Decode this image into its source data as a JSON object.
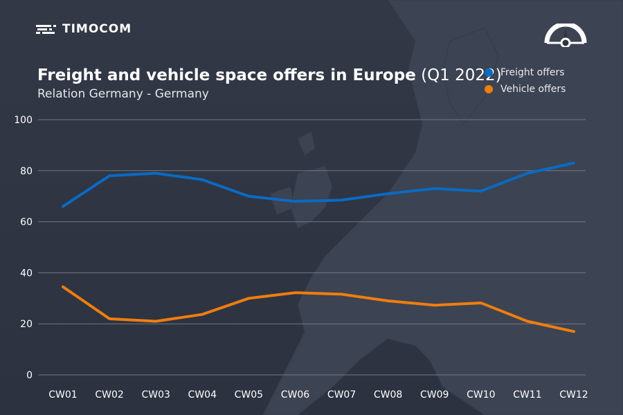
{
  "brand": {
    "name": "TIMOCOM"
  },
  "colors": {
    "background": "#2e3441",
    "freight": "#0a6ac3",
    "vehicle": "#f07d0f",
    "grid": "#727986",
    "text": "#ffffff"
  },
  "chart_data": {
    "type": "line",
    "title_bold": "Freight and vehicle space offers in Europe",
    "title_suffix": "(Q1 2022)",
    "subtitle": "Relation Germany - Germany",
    "categories": [
      "CW01",
      "CW02",
      "CW03",
      "CW04",
      "CW05",
      "CW06",
      "CW07",
      "CW08",
      "CW09",
      "CW10",
      "CW11",
      "CW12"
    ],
    "series": [
      {
        "name": "Freight offers",
        "color": "#0a6ac3",
        "values": [
          66,
          78,
          79,
          76.5,
          70,
          68,
          68.5,
          71,
          73,
          72,
          79,
          83
        ]
      },
      {
        "name": "Vehicle offers",
        "color": "#f07d0f",
        "values": [
          34.5,
          22,
          21,
          23.7,
          30,
          32.2,
          31.6,
          29,
          27.3,
          28.2,
          21,
          17
        ]
      }
    ],
    "ylim": [
      0,
      100
    ],
    "yticks": [
      0,
      20,
      40,
      60,
      80,
      100
    ],
    "grid": true,
    "legend": "top-right"
  }
}
